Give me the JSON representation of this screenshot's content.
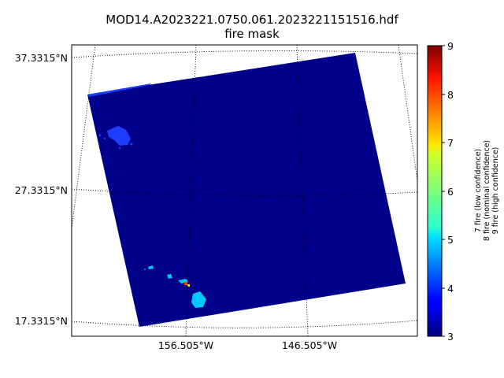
{
  "figure": {
    "title_line1": "MOD14.A2023221.0750.061.2023221151516.hdf",
    "title_line2": "fire mask"
  },
  "map": {
    "lat_labels": [
      "37.3315°N",
      "27.3315°N",
      "17.3315°N"
    ],
    "lon_labels": [
      "156.505°W",
      "146.505°W"
    ],
    "grid_style": "dotted",
    "swath_color": "#00008b"
  },
  "colorbar": {
    "min": 3,
    "max": 9,
    "ticks": [
      "3",
      "4",
      "5",
      "6",
      "7",
      "8",
      "9"
    ],
    "label_lines": [
      "7 fire (low confidence)",
      "8 fire (nominal confidence)",
      "9 fire (high confidence)"
    ],
    "colormap": "jet"
  }
}
